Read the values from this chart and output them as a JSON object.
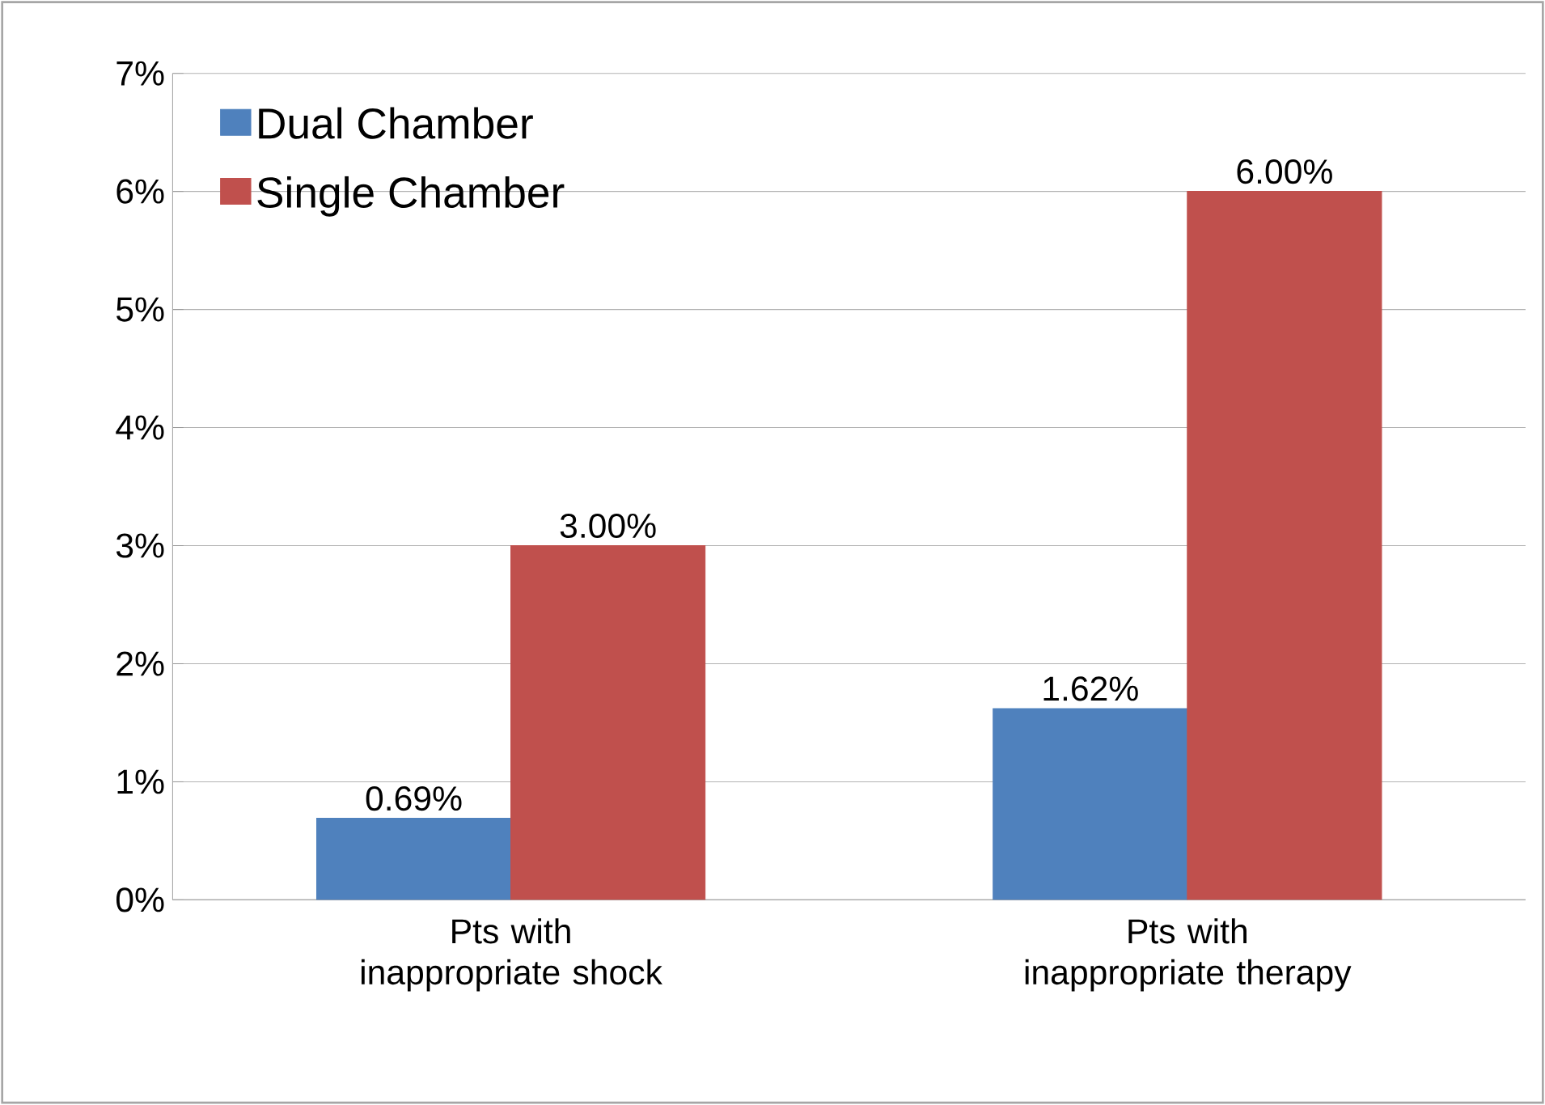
{
  "chart_data": {
    "type": "bar",
    "categories": [
      "Pts with inappropriate shock",
      "Pts with inappropriate therapy"
    ],
    "series": [
      {
        "name": "Dual Chamber",
        "color": "#4f81bd",
        "values": [
          0.69,
          1.62
        ],
        "value_labels": [
          "0.69%",
          "1.62%"
        ]
      },
      {
        "name": "Single Chamber",
        "color": "#c0504d",
        "values": [
          3.0,
          6.0
        ],
        "value_labels": [
          "3.00%",
          "6.00%"
        ]
      }
    ],
    "ylim": [
      0,
      7
    ],
    "yticks": [
      {
        "value": 0,
        "label": "0%"
      },
      {
        "value": 1,
        "label": "1%"
      },
      {
        "value": 2,
        "label": "2%"
      },
      {
        "value": 3,
        "label": "3%"
      },
      {
        "value": 4,
        "label": "4%"
      },
      {
        "value": 5,
        "label": "5%"
      },
      {
        "value": 6,
        "label": "6%"
      },
      {
        "value": 7,
        "label": "7%"
      }
    ],
    "grid": "y",
    "legend": "top left"
  }
}
